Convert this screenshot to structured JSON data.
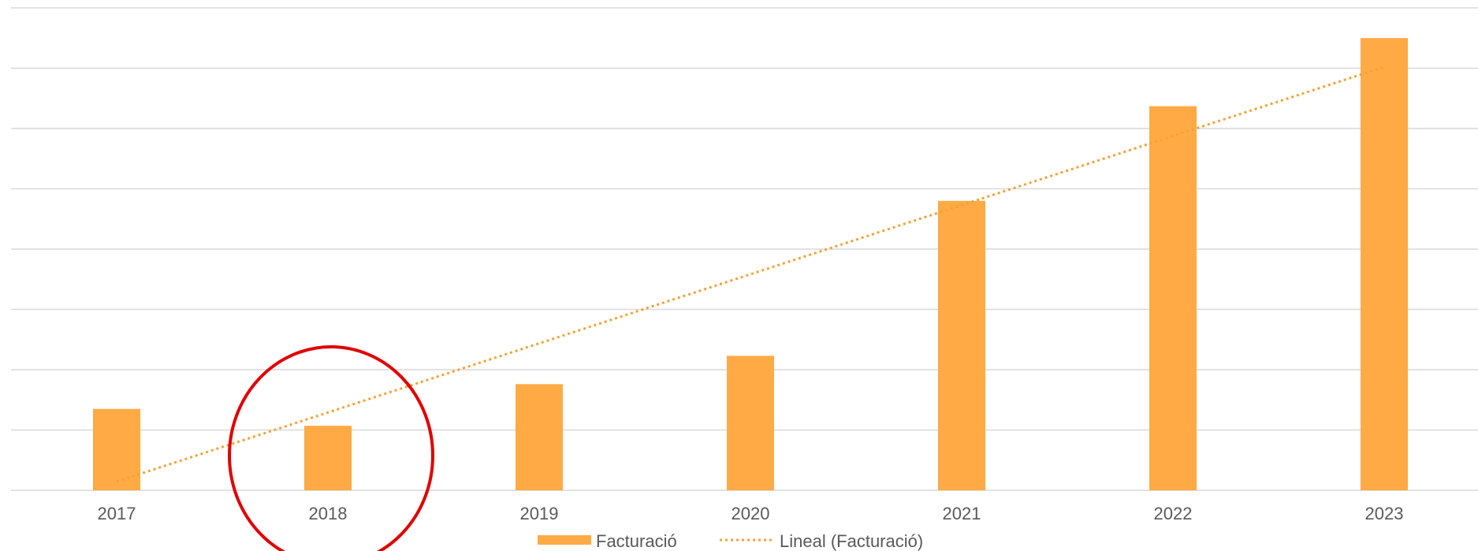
{
  "chart_data": {
    "type": "bar",
    "categories": [
      "2017",
      "2018",
      "2019",
      "2020",
      "2021",
      "2022",
      "2023"
    ],
    "series": [
      {
        "name": "Facturació",
        "values": [
          1.35,
          1.07,
          1.76,
          2.23,
          4.8,
          6.37,
          7.5
        ]
      }
    ],
    "trendline": {
      "name": "Lineal (Facturació)",
      "type": "linear",
      "dashed": true
    },
    "ylim": [
      0,
      8
    ],
    "y_gridlines": 8,
    "grid": true,
    "y_tick_labels_visible": false,
    "legend_position": "bottom",
    "bar_color": "#FFAA45",
    "trend_color": "#F4A236",
    "grid_color": "#D9D9D9",
    "annotation": {
      "type": "circle",
      "target_category": "2018",
      "color": "#E00000"
    }
  }
}
